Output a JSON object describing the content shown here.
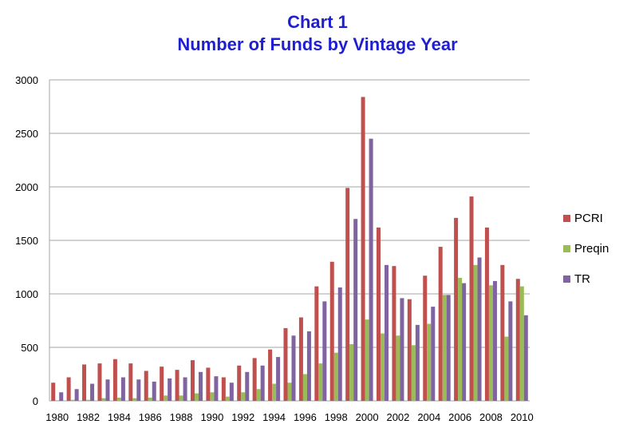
{
  "chart_data": {
    "type": "bar",
    "title": "Chart 1",
    "subtitle": "Number of Funds by Vintage Year",
    "xlabel": "",
    "ylabel": "",
    "ylim": [
      0,
      3000
    ],
    "yticks": [
      0,
      500,
      1000,
      1500,
      2000,
      2500,
      3000
    ],
    "grid": true,
    "legend_position": "right",
    "categories": [
      "1980",
      "1981",
      "1982",
      "1983",
      "1984",
      "1985",
      "1986",
      "1987",
      "1988",
      "1989",
      "1990",
      "1991",
      "1992",
      "1993",
      "1994",
      "1995",
      "1996",
      "1997",
      "1998",
      "1999",
      "2000",
      "2001",
      "2002",
      "2003",
      "2004",
      "2005",
      "2006",
      "2007",
      "2008",
      "2009",
      "2010"
    ],
    "xtick_labels": [
      "1980",
      "1982",
      "1984",
      "1986",
      "1988",
      "1990",
      "1992",
      "1994",
      "1996",
      "1998",
      "2000",
      "2002",
      "2004",
      "2006",
      "2008",
      "2010"
    ],
    "series": [
      {
        "name": "PCRI",
        "color": "#c0504d",
        "values": [
          170,
          220,
          340,
          350,
          390,
          350,
          280,
          320,
          290,
          380,
          310,
          220,
          330,
          400,
          480,
          680,
          780,
          1070,
          1300,
          1990,
          2840,
          1620,
          1260,
          950,
          1170,
          1440,
          1710,
          1910,
          1620,
          1270,
          1140
        ]
      },
      {
        "name": "Preqin",
        "color": "#9bbb59",
        "values": [
          5,
          10,
          10,
          25,
          30,
          25,
          30,
          50,
          50,
          70,
          80,
          40,
          80,
          110,
          160,
          170,
          250,
          350,
          450,
          530,
          760,
          630,
          610,
          520,
          720,
          990,
          1150,
          1270,
          1080,
          600,
          1070
        ]
      },
      {
        "name": "TR",
        "color": "#8064a2",
        "values": [
          80,
          110,
          160,
          200,
          220,
          200,
          180,
          210,
          220,
          270,
          230,
          170,
          270,
          330,
          410,
          610,
          650,
          930,
          1060,
          1700,
          2450,
          1270,
          960,
          710,
          880,
          990,
          1100,
          1340,
          1120,
          930,
          800
        ]
      }
    ]
  }
}
